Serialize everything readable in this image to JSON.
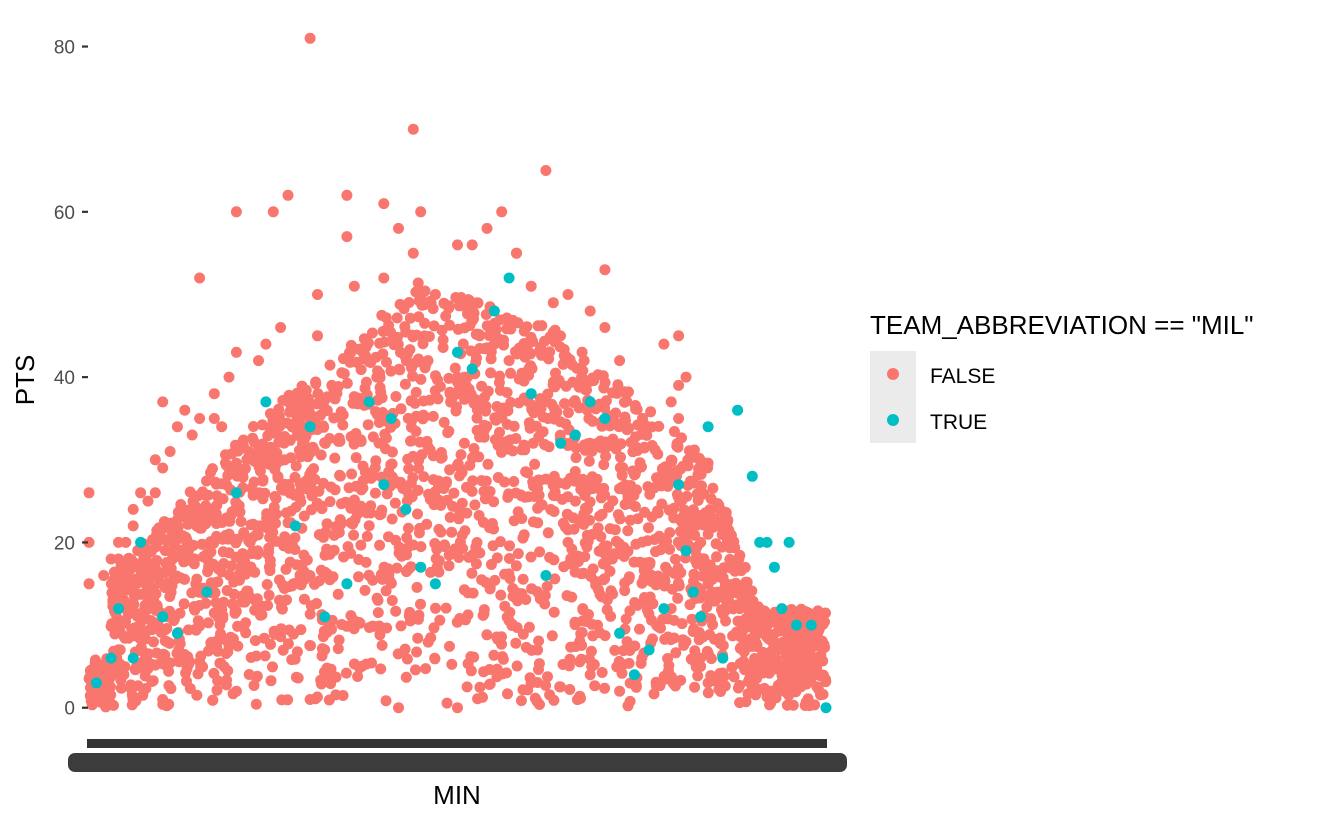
{
  "chart_data": {
    "type": "scatter",
    "title": "",
    "xlabel": "MIN",
    "ylabel": "PTS",
    "ylim": [
      -1,
      82
    ],
    "yticks": [
      0,
      20,
      40,
      60,
      80
    ],
    "x_axis_note": "categorical MIN values; tick labels overplotted and illegible",
    "grid": false,
    "legend": {
      "title": "TEAM_ABBREVIATION == \"MIL\"",
      "position": "right",
      "entries": [
        {
          "label": "FALSE",
          "color": "#F8766D"
        },
        {
          "label": "TRUE",
          "color": "#00BFC4"
        }
      ]
    },
    "series": [
      {
        "name": "FALSE",
        "color": "#F8766D",
        "points": [
          [
            0.0,
            26
          ],
          [
            0.0,
            20
          ],
          [
            0.0,
            15
          ],
          [
            0.05,
            12
          ],
          [
            0.3,
            81
          ],
          [
            0.44,
            70
          ],
          [
            0.62,
            65
          ],
          [
            0.35,
            62
          ],
          [
            0.27,
            62
          ],
          [
            0.2,
            60
          ],
          [
            0.4,
            61
          ],
          [
            0.45,
            60
          ],
          [
            0.56,
            60
          ],
          [
            0.58,
            55
          ],
          [
            0.42,
            58
          ],
          [
            0.54,
            58
          ],
          [
            0.4,
            52
          ],
          [
            0.44,
            55
          ],
          [
            0.35,
            57
          ],
          [
            0.25,
            60
          ],
          [
            0.15,
            52
          ],
          [
            0.31,
            50
          ],
          [
            0.36,
            51
          ],
          [
            0.47,
            50
          ],
          [
            0.5,
            56
          ],
          [
            0.52,
            56
          ],
          [
            0.58,
            55
          ],
          [
            0.6,
            51
          ],
          [
            0.65,
            50
          ],
          [
            0.7,
            53
          ],
          [
            0.68,
            48
          ],
          [
            0.63,
            49
          ],
          [
            0.7,
            46
          ],
          [
            0.72,
            42
          ],
          [
            0.8,
            45
          ],
          [
            0.78,
            44
          ],
          [
            0.81,
            40
          ],
          [
            0.8,
            39
          ],
          [
            0.79,
            37
          ],
          [
            0.8,
            35
          ],
          [
            0.78,
            28
          ],
          [
            0.82,
            22
          ],
          [
            0.84,
            21
          ],
          [
            0.83,
            20
          ],
          [
            0.81,
            20
          ],
          [
            0.83,
            18
          ],
          [
            0.84,
            15
          ],
          [
            0.31,
            45
          ],
          [
            0.24,
            44
          ],
          [
            0.26,
            46
          ],
          [
            0.2,
            43
          ],
          [
            0.23,
            42
          ],
          [
            0.19,
            40
          ],
          [
            0.17,
            38
          ],
          [
            0.1,
            37
          ],
          [
            0.12,
            34
          ],
          [
            0.13,
            36
          ],
          [
            0.09,
            30
          ],
          [
            0.08,
            25
          ],
          [
            0.06,
            24
          ],
          [
            0.05,
            20
          ],
          [
            0.03,
            18
          ],
          [
            0.04,
            18
          ],
          [
            0.02,
            16
          ],
          [
            0.1,
            29
          ],
          [
            0.11,
            31
          ],
          [
            0.14,
            33
          ],
          [
            0.15,
            35
          ],
          [
            0.17,
            35
          ],
          [
            0.18,
            34
          ],
          [
            0.09,
            26
          ],
          [
            0.07,
            26
          ],
          [
            0.06,
            22
          ],
          [
            0.04,
            20
          ],
          [
            0.55,
            44
          ],
          [
            0.57,
            42
          ],
          [
            0.53,
            45
          ],
          [
            0.51,
            40
          ],
          [
            0.49,
            38
          ],
          [
            0.46,
            42
          ],
          [
            0.66,
            25
          ],
          [
            0.65,
            20
          ],
          [
            0.67,
            12
          ],
          [
            0.69,
            10
          ],
          [
            0.71,
            18
          ],
          [
            0.73,
            8
          ],
          [
            0.75,
            6
          ],
          [
            0.77,
            10
          ],
          [
            0.79,
            12
          ],
          [
            0.81,
            8
          ],
          [
            0.83,
            5
          ],
          [
            0.84,
            3
          ],
          [
            0.5,
            0
          ],
          [
            0.42,
            0
          ],
          [
            0.3,
            1
          ],
          [
            0.2,
            2
          ],
          [
            0.1,
            1
          ],
          [
            0.6,
            3
          ],
          [
            0.68,
            4
          ],
          [
            0.72,
            2
          ]
        ]
      },
      {
        "name": "TRUE",
        "color": "#00BFC4",
        "points": [
          [
            0.01,
            3
          ],
          [
            0.03,
            6
          ],
          [
            0.04,
            12
          ],
          [
            0.06,
            6
          ],
          [
            0.07,
            20
          ],
          [
            0.1,
            11
          ],
          [
            0.12,
            9
          ],
          [
            0.16,
            14
          ],
          [
            0.2,
            26
          ],
          [
            0.24,
            37
          ],
          [
            0.28,
            22
          ],
          [
            0.3,
            34
          ],
          [
            0.32,
            11
          ],
          [
            0.35,
            15
          ],
          [
            0.38,
            37
          ],
          [
            0.4,
            27
          ],
          [
            0.41,
            35
          ],
          [
            0.43,
            24
          ],
          [
            0.45,
            17
          ],
          [
            0.47,
            15
          ],
          [
            0.5,
            43
          ],
          [
            0.52,
            41
          ],
          [
            0.55,
            48
          ],
          [
            0.57,
            52
          ],
          [
            0.6,
            38
          ],
          [
            0.62,
            16
          ],
          [
            0.64,
            32
          ],
          [
            0.66,
            33
          ],
          [
            0.68,
            37
          ],
          [
            0.7,
            35
          ],
          [
            0.72,
            9
          ],
          [
            0.74,
            4
          ],
          [
            0.76,
            7
          ],
          [
            0.78,
            12
          ],
          [
            0.8,
            27
          ],
          [
            0.81,
            19
          ],
          [
            0.82,
            14
          ],
          [
            0.83,
            11
          ],
          [
            0.84,
            34
          ],
          [
            0.86,
            6
          ],
          [
            0.88,
            36
          ],
          [
            0.9,
            28
          ],
          [
            0.91,
            20
          ],
          [
            0.92,
            20
          ],
          [
            0.93,
            17
          ],
          [
            0.94,
            12
          ],
          [
            0.95,
            20
          ],
          [
            0.96,
            10
          ],
          [
            0.98,
            10
          ],
          [
            1.0,
            0
          ]
        ]
      }
    ]
  }
}
